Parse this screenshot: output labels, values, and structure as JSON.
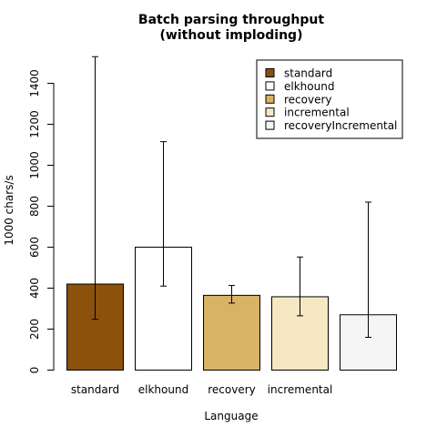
{
  "chart_data": {
    "type": "bar",
    "title_lines": [
      "Batch parsing throughput",
      "(without imploding)"
    ],
    "xlabel": "Language",
    "ylabel": "1000 chars/s",
    "ylim": [
      0,
      1550
    ],
    "yticks": [
      0,
      200,
      400,
      600,
      800,
      1000,
      1200,
      1400
    ],
    "categories": [
      "standard",
      "elkhound",
      "recovery",
      "incremental",
      ""
    ],
    "values": [
      420,
      600,
      365,
      358,
      270
    ],
    "error_low": [
      248,
      410,
      327,
      265,
      160
    ],
    "error_high": [
      1530,
      1115,
      413,
      552,
      820
    ],
    "colors": [
      "#8c510a",
      "#ffffff",
      "#d8b365",
      "#f6e8c3",
      "#f5f5f5"
    ],
    "legend": {
      "position": "top-right",
      "entries": [
        "standard",
        "elkhound",
        "recovery",
        "incremental",
        "recoveryIncremental"
      ]
    },
    "grid": false
  }
}
